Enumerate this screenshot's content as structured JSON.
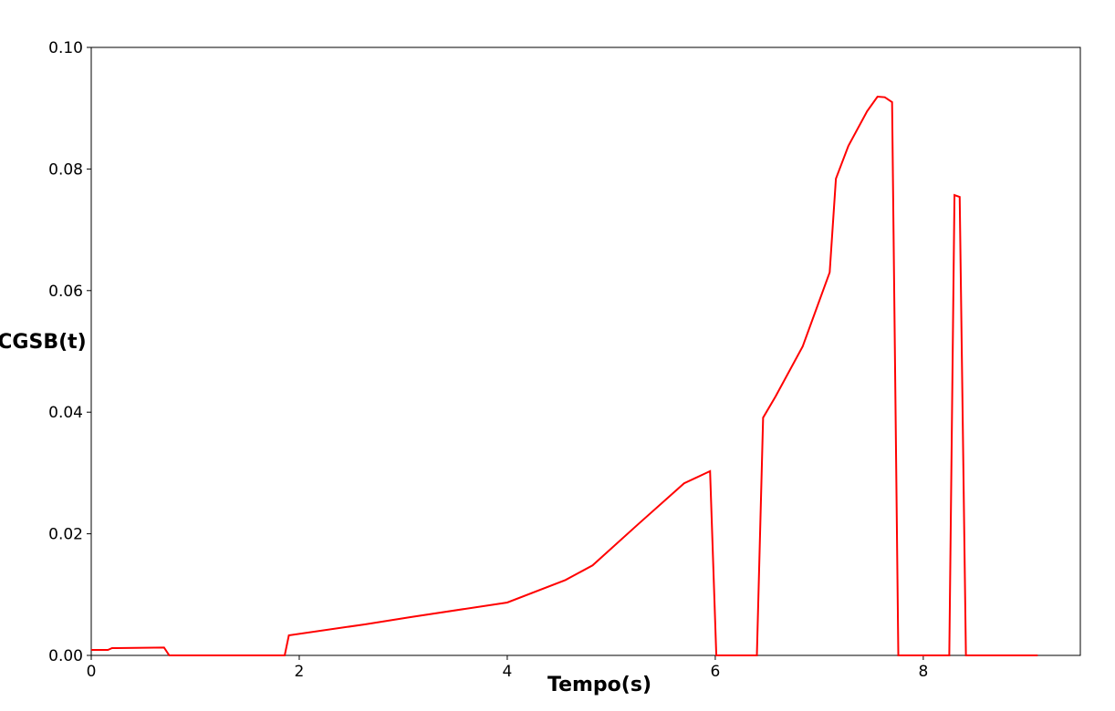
{
  "chart_data": {
    "type": "line",
    "x_label": "Tempo(s)",
    "y_label": "CGSB(t)",
    "xlim": [
      0,
      9.51
    ],
    "ylim": [
      0,
      0.1
    ],
    "xticks": [
      0,
      2,
      4,
      6,
      8
    ],
    "yticks": [
      {
        "value": 0,
        "label": "0.00"
      },
      0.02,
      0.04,
      0.06,
      0.08,
      {
        "value": 0.1,
        "label": "0.10"
      }
    ],
    "x": [
      0,
      0.16,
      0.2,
      0.7,
      0.75,
      1.86,
      1.9,
      2.63,
      3.07,
      4.0,
      4.56,
      4.82,
      5.26,
      5.7,
      5.95,
      6.01,
      6.4,
      6.46,
      6.58,
      6.84,
      7.1,
      7.16,
      7.28,
      7.46,
      7.56,
      7.63,
      7.7,
      7.76,
      8.25,
      8.3,
      8.35,
      8.41,
      9.1
    ],
    "series": [
      {
        "name": "CGSB",
        "color": "#ff0000",
        "values": [
          0.0009,
          0.0009,
          0.0012,
          0.0013,
          0,
          0,
          0.0033,
          0.0051,
          0.0063,
          0.0087,
          0.0124,
          0.0148,
          0.0216,
          0.0283,
          0.0303,
          0,
          0,
          0.0391,
          0.0426,
          0.0508,
          0.063,
          0.0784,
          0.0838,
          0.0895,
          0.0919,
          0.0918,
          0.091,
          0,
          0,
          0.0757,
          0.0754,
          0,
          0
        ]
      }
    ]
  }
}
